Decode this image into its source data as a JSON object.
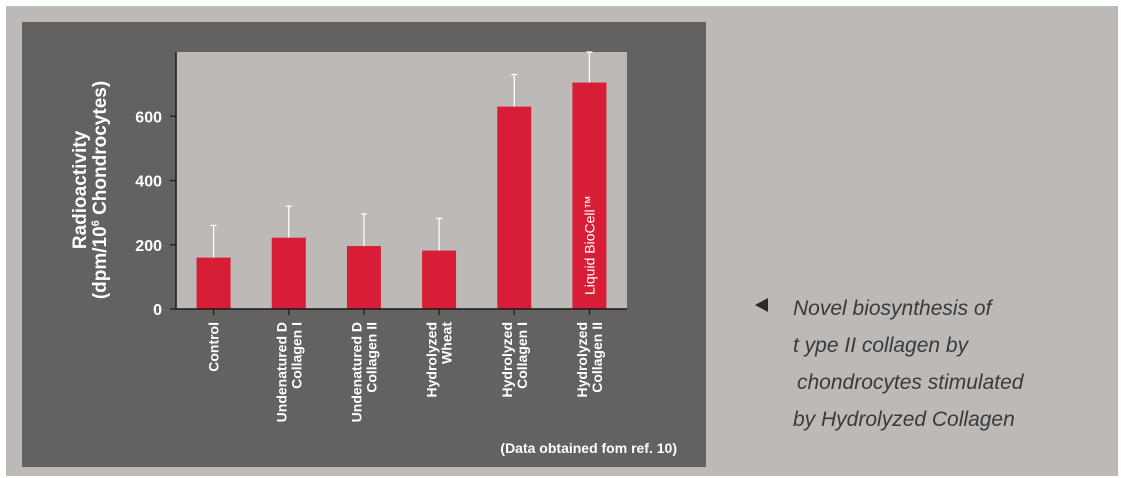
{
  "chart_data": {
    "type": "bar",
    "ylabel_line1": "Radioactivity",
    "ylabel_line2_pre": "(dpm/10",
    "ylabel_line2_sup": "6",
    "ylabel_line2_post": " Chondrocytes)",
    "ylim": [
      0,
      800
    ],
    "yticks": [
      0,
      200,
      400,
      600
    ],
    "categories": [
      [
        "Control"
      ],
      [
        "Undenatured D",
        "Collagen I"
      ],
      [
        "Undenatured D",
        "Collagen II"
      ],
      [
        "Hydrolyzed",
        "Wheat"
      ],
      [
        "Hydrolyzed",
        "Collagen I"
      ],
      [
        "Hydrolyzed",
        "Collagen II"
      ]
    ],
    "values": [
      160,
      222,
      196,
      182,
      630,
      705
    ],
    "error_upper": [
      260,
      320,
      296,
      282,
      730,
      800
    ],
    "bar_annotation": {
      "index": 5,
      "text": "Liquid BioCell™"
    },
    "note": "(Data obtained fom ref. 10)",
    "colors": {
      "bar": "#d81e36",
      "plot_bg": "#bdb9b6",
      "panel_bg": "#636260",
      "text": "#ffffff",
      "error": "#ffffff"
    }
  },
  "caption": {
    "lines": [
      "Novel biosynthesis of",
      "t ype II collagen by",
      "chondrocytes stimulated",
      "by Hydrolyzed Collagen"
    ]
  }
}
